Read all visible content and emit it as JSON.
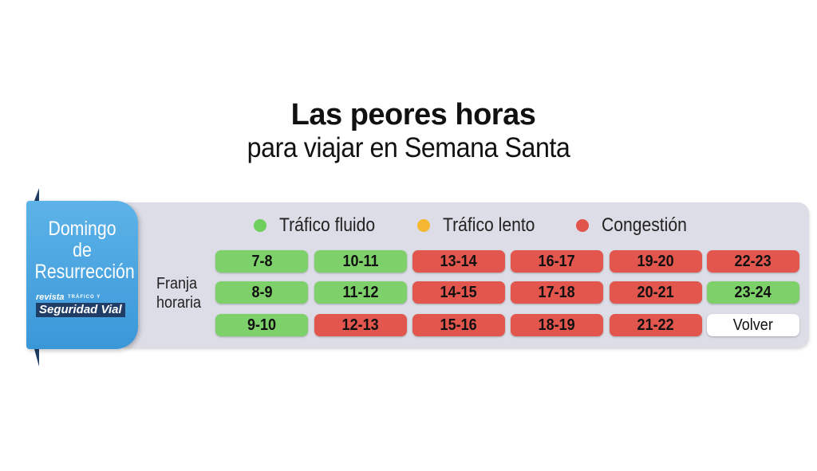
{
  "title": {
    "main": "Las peores horas",
    "sub": "para viajar en Semana Santa"
  },
  "ribbon": {
    "line1": "Domingo",
    "line2": "de",
    "line3": "Resurrección",
    "brand_small": "revista",
    "brand_tiny": "TRÁFICO Y",
    "brand_big": "Seguridad Vial"
  },
  "legend": [
    {
      "label": "Tráfico fluido",
      "color": "#6fcf5c"
    },
    {
      "label": "Tráfico lento",
      "color": "#f5b731"
    },
    {
      "label": "Congestión",
      "color": "#e0544c"
    }
  ],
  "franja": {
    "line1": "Franja",
    "line2": "horaria"
  },
  "colors": {
    "fluido": "#7ed16a",
    "congestion": "#e2564e",
    "volver": "#ffffff"
  },
  "grid": {
    "columns": [
      [
        {
          "label": "7-8",
          "status": "fluido"
        },
        {
          "label": "8-9",
          "status": "fluido"
        },
        {
          "label": "9-10",
          "status": "fluido"
        }
      ],
      [
        {
          "label": "10-11",
          "status": "fluido"
        },
        {
          "label": "11-12",
          "status": "fluido"
        },
        {
          "label": "12-13",
          "status": "congestion"
        }
      ],
      [
        {
          "label": "13-14",
          "status": "congestion"
        },
        {
          "label": "14-15",
          "status": "congestion"
        },
        {
          "label": "15-16",
          "status": "congestion"
        }
      ],
      [
        {
          "label": "16-17",
          "status": "congestion"
        },
        {
          "label": "17-18",
          "status": "congestion"
        },
        {
          "label": "18-19",
          "status": "congestion"
        }
      ],
      [
        {
          "label": "19-20",
          "status": "congestion"
        },
        {
          "label": "20-21",
          "status": "congestion"
        },
        {
          "label": "21-22",
          "status": "congestion"
        }
      ],
      [
        {
          "label": "22-23",
          "status": "congestion"
        },
        {
          "label": "23-24",
          "status": "fluido"
        },
        {
          "label": "Volver",
          "status": "volver"
        }
      ]
    ]
  }
}
